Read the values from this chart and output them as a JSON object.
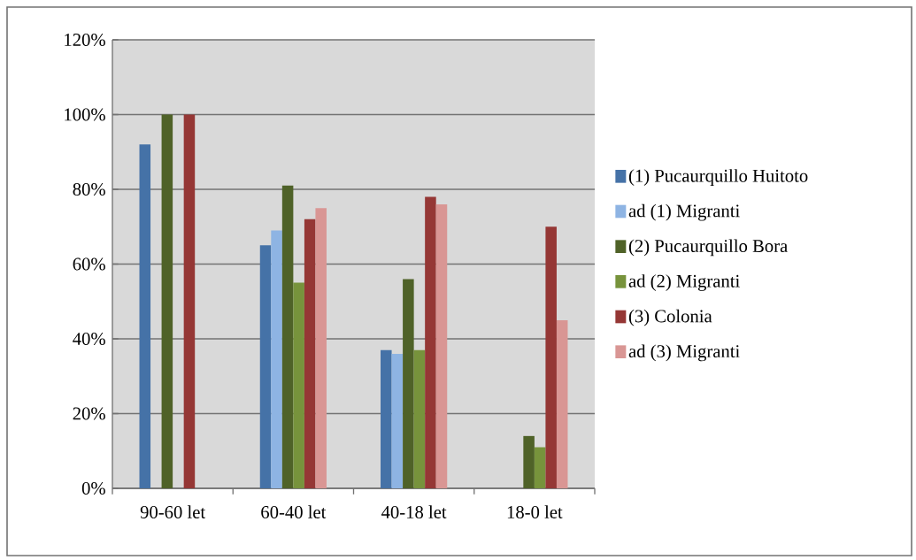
{
  "chart_data": {
    "type": "bar",
    "categories": [
      "90-60 let",
      "60-40 let",
      "40-18 let",
      "18-0 let"
    ],
    "series": [
      {
        "name": "(1) Pucaurquillo Huitoto",
        "color": "#4572a7",
        "values": [
          92,
          65,
          37,
          null
        ]
      },
      {
        "name": "ad (1) Migranti",
        "color": "#8eb4e3",
        "values": [
          null,
          69,
          36,
          null
        ]
      },
      {
        "name": "(2) Pucaurquillo Bora",
        "color": "#4f6228",
        "values": [
          100,
          81,
          56,
          14
        ]
      },
      {
        "name": "ad (2) Migranti",
        "color": "#77933c",
        "values": [
          null,
          55,
          37,
          11
        ]
      },
      {
        "name": "(3) Colonia",
        "color": "#953735",
        "values": [
          100,
          72,
          78,
          70
        ]
      },
      {
        "name": "ad (3) Migranti",
        "color": "#d99694",
        "values": [
          null,
          75,
          76,
          45
        ]
      }
    ],
    "ylim": [
      0,
      120
    ],
    "yticks": [
      {
        "value": 0,
        "label": "0%"
      },
      {
        "value": 20,
        "label": "20%"
      },
      {
        "value": 40,
        "label": "40%"
      },
      {
        "value": 60,
        "label": "60%"
      },
      {
        "value": 80,
        "label": "80%"
      },
      {
        "value": 100,
        "label": "100%"
      },
      {
        "value": 120,
        "label": "120%"
      }
    ],
    "grid": "y",
    "legend": "right"
  }
}
